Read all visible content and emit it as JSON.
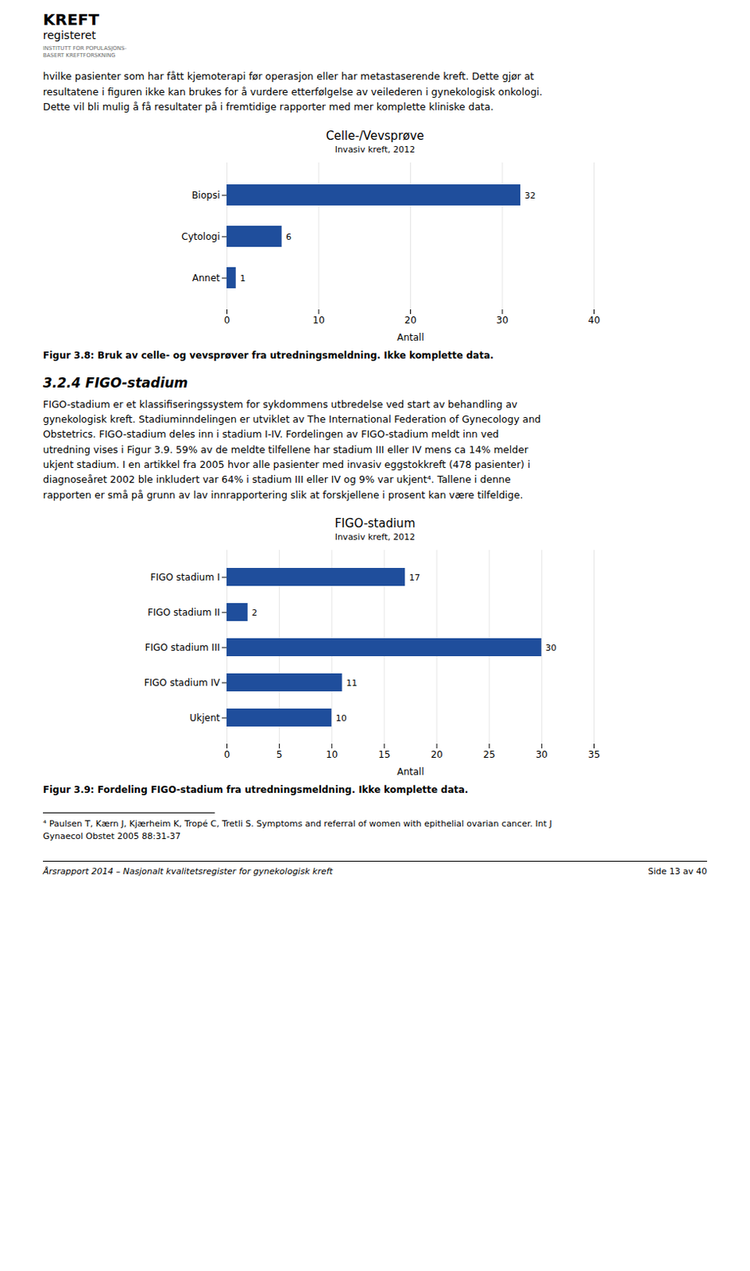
{
  "logo": [
    "KREFT",
    "registeret",
    "INSTITUTT FOR POPULASJONS-\nBASERT KREFTFORSKNING"
  ],
  "intro_text": "hvilke pasienter som har fått kjemoterapi før operasjon eller har metastaserende kreft. Dette gjør at\nresultatene i figuren ikke kan brukes for å vurdere etterfølgelse av veilederen i gynekologisk onkologi.\nDette vil bli mulig å få resultater på i fremtidige rapporter med mer komplette kliniske data.",
  "section_title": "3.2.4  FIGO-stadium",
  "body_text": "FIGO-stadium er et klassifiseringssystem for sykdommens utbredelse ved start av behandling av\ngynekologisk kreft. Stadiuminndelingen er utviklet av The International Federation of Gynecology and\nObstetrics. FIGO-stadium deles inn i stadium I-IV. Fordelingen av FIGO-stadium meldt  inn ved\nutredning vises i Figur 3.9. 59% av de meldte tilfellene har stadium III eller IV mens ca 14% melder\nukjent stadium. I en artikkel fra 2005 hvor alle pasienter med invasiv eggstokkreft (478 pasienter) i\ndiagnoseåret 2002 ble inkludert var 64% i stadium III eller IV og 9% var ukjent⁴. Tallene i denne\nrapporten er små på grunn av lav innrapportering slik at forskjellene i prosent kan være tilfeldige.",
  "footnote": "⁴ Paulsen T, Kærn J, Kjærheim K, Tropé C, Tretli S. Symptoms and referral of women with epithelial ovarian cancer. Int J\nGynaecol Obstet 2005 88:31-37",
  "footer_left": "Årsrapport 2014 – Nasjonalt kvalitetsregister for gynekologisk kreft",
  "footer_right": "Side 13 av 40",
  "chart_data": [
    {
      "type": "bar",
      "orientation": "horizontal",
      "title": "Celle-/Vevsprøve",
      "subtitle": "Invasiv kreft, 2012",
      "caption": "Figur 3.8: Bruk av celle- og vevsprøver fra utredningsmeldning. Ikke komplette data.",
      "categories": [
        "Biopsi",
        "Cytologi",
        "Annet"
      ],
      "values": [
        32,
        6,
        1
      ],
      "color": "#1f4e9c",
      "xlim": [
        0,
        40
      ],
      "xticks": [
        0,
        10,
        20,
        30,
        40
      ],
      "xlabel": "Antall",
      "grid": true,
      "data_labels": true
    },
    {
      "type": "bar",
      "orientation": "horizontal",
      "title": "FIGO-stadium",
      "subtitle": "Invasiv kreft, 2012",
      "caption": "Figur 3.9: Fordeling FIGO-stadium fra utredningsmeldning. Ikke komplette data.",
      "categories": [
        "FIGO stadium I",
        "FIGO stadium II",
        "FIGO stadium III",
        "FIGO stadium IV",
        "Ukjent"
      ],
      "values": [
        17,
        2,
        30,
        11,
        10
      ],
      "color": "#1f4e9c",
      "xlim": [
        0,
        35
      ],
      "xticks": [
        0,
        5,
        10,
        15,
        20,
        25,
        30,
        35
      ],
      "xlabel": "Antall",
      "grid": true,
      "data_labels": true
    }
  ]
}
